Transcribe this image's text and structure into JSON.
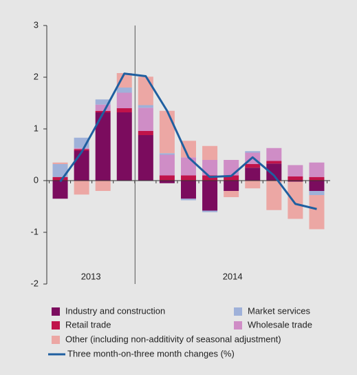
{
  "chart_data": {
    "type": "bar",
    "stacked": true,
    "categories": [
      null,
      null,
      null,
      null,
      null,
      null,
      null,
      null,
      null,
      null,
      null,
      null,
      null
    ],
    "groups": [
      "2013",
      "2014"
    ],
    "ylim": [
      -2,
      3
    ],
    "yticks": [
      -2,
      -1,
      0,
      1,
      2,
      3
    ],
    "series": [
      {
        "name": "Industry and construction",
        "color": "#7b0c5e",
        "values": [
          -0.35,
          0.58,
          1.32,
          1.32,
          0.88,
          -0.05,
          -0.35,
          -0.58,
          -0.2,
          0.25,
          0.33,
          -0.02,
          -0.2
        ]
      },
      {
        "name": "Retail trade",
        "color": "#c0134a",
        "values": [
          0.07,
          0.03,
          0.03,
          0.08,
          0.08,
          0.1,
          0.1,
          0.1,
          0.1,
          0.07,
          0.05,
          0.08,
          0.07
        ]
      },
      {
        "name": "Wholesale trade",
        "color": "#cf8dc6",
        "values": [
          0,
          0.02,
          0.12,
          0.3,
          0.45,
          0.4,
          0.35,
          0.3,
          0.3,
          0.22,
          0.25,
          0.22,
          0.28
        ]
      },
      {
        "name": "Market services",
        "color": "#9fb1d9",
        "values": [
          0.25,
          0.2,
          0.1,
          0.1,
          0.05,
          0.03,
          -0.03,
          -0.03,
          0,
          0.03,
          0,
          0,
          -0.08
        ]
      },
      {
        "name": "Other (including non-additivity of seasonal adjustment)",
        "color": "#eca7a4",
        "values": [
          0.03,
          -0.27,
          -0.2,
          0.28,
          0.55,
          0.82,
          0.32,
          0.27,
          -0.12,
          -0.15,
          -0.57,
          -0.72,
          -0.66
        ]
      },
      {
        "name": "Three month-on-three month changes (%)",
        "color": "#1f5fa0",
        "type": "line",
        "values": [
          -0.02,
          0.55,
          1.3,
          2.07,
          2.02,
          1.35,
          0.45,
          0.07,
          0.09,
          0.45,
          0.1,
          -0.45,
          -0.55
        ]
      }
    ]
  }
}
